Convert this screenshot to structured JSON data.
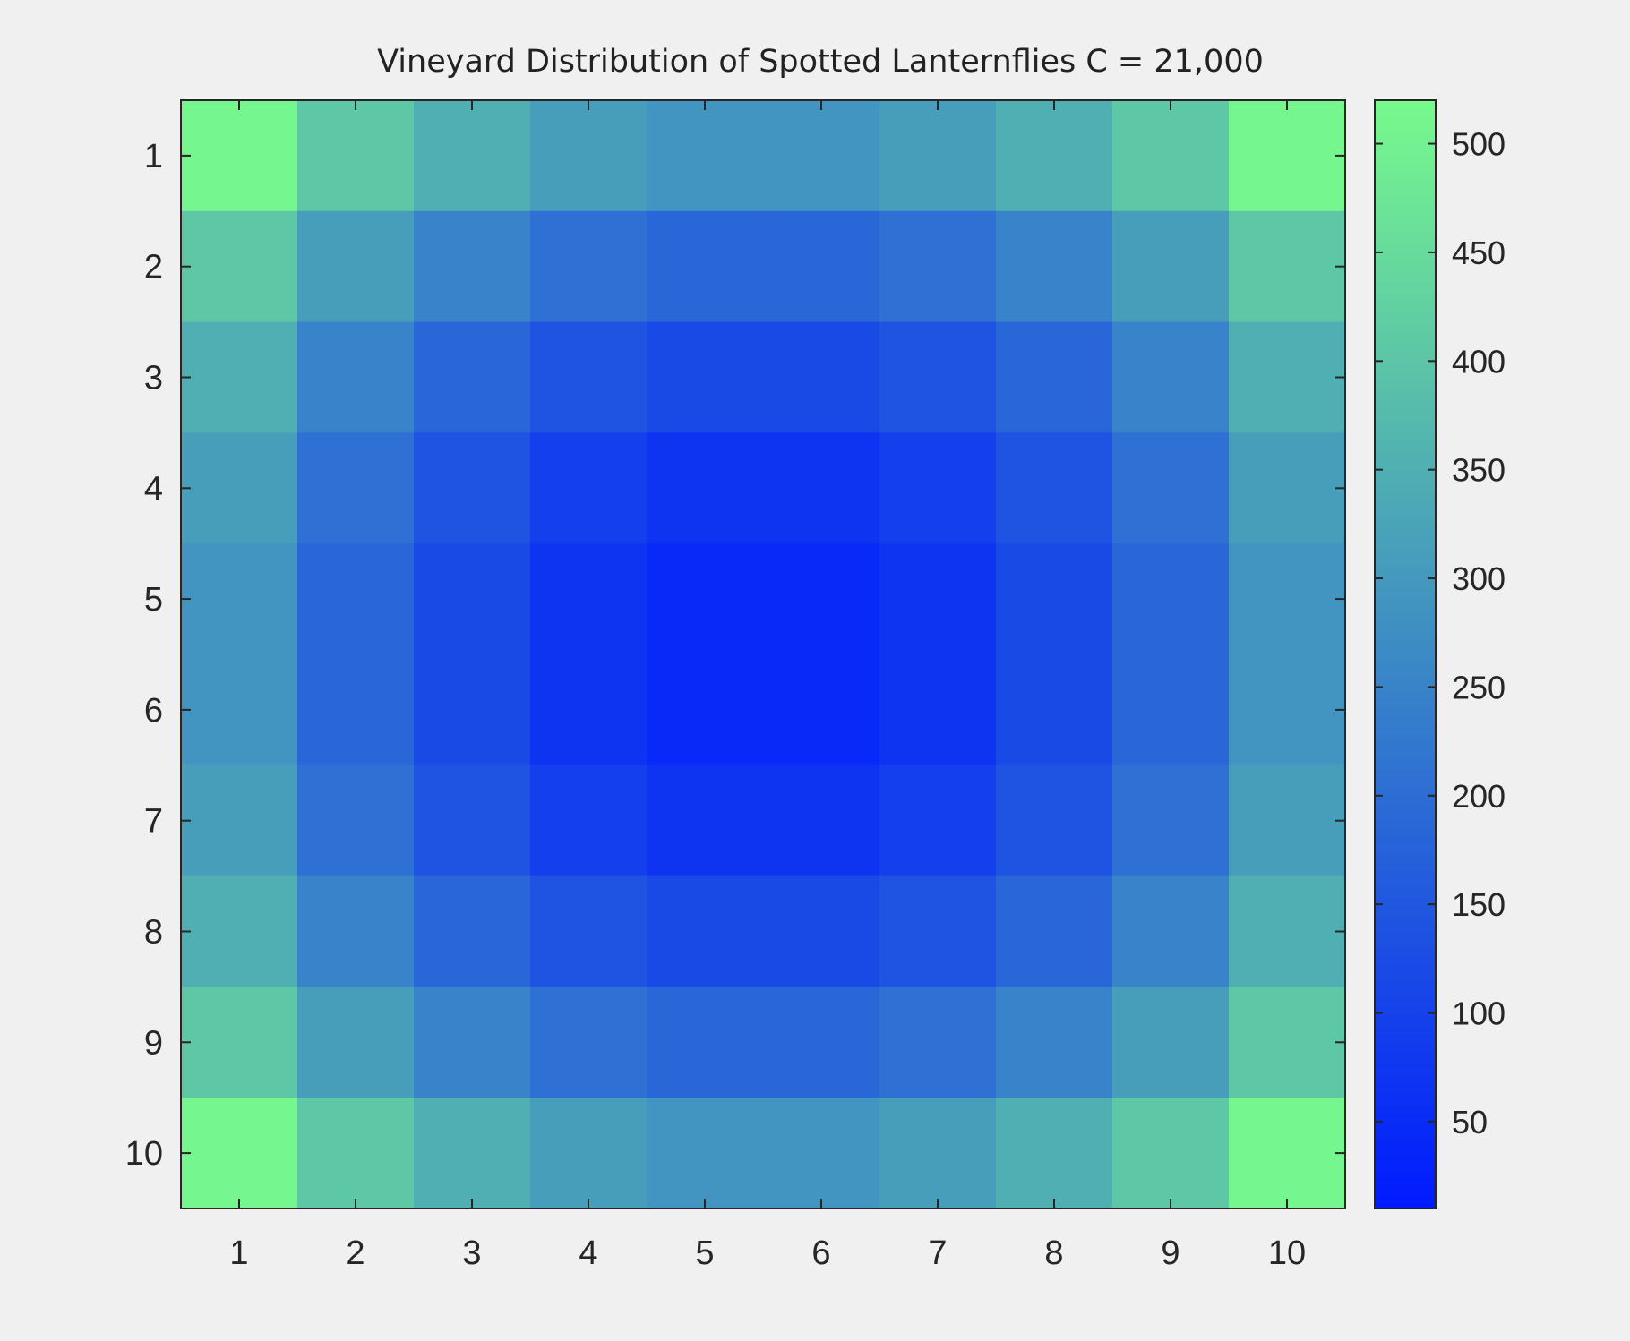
{
  "chart_data": {
    "type": "heatmap",
    "title": "Vineyard Distribution of Spotted Lanternflies C = 21,000",
    "xlabel": "",
    "ylabel": "",
    "x_categories": [
      "1",
      "2",
      "3",
      "4",
      "5",
      "6",
      "7",
      "8",
      "9",
      "10"
    ],
    "y_categories": [
      "1",
      "2",
      "3",
      "4",
      "5",
      "6",
      "7",
      "8",
      "9",
      "10"
    ],
    "values": [
      [
        510,
        405,
        350,
        310,
        290,
        290,
        310,
        350,
        405,
        510
      ],
      [
        405,
        310,
        250,
        205,
        185,
        185,
        205,
        250,
        310,
        405
      ],
      [
        350,
        250,
        185,
        140,
        120,
        120,
        140,
        185,
        250,
        350
      ],
      [
        310,
        205,
        140,
        95,
        70,
        70,
        95,
        140,
        205,
        310
      ],
      [
        290,
        185,
        120,
        70,
        45,
        45,
        70,
        120,
        185,
        290
      ],
      [
        290,
        185,
        120,
        70,
        45,
        45,
        70,
        120,
        185,
        290
      ],
      [
        310,
        205,
        140,
        95,
        70,
        70,
        95,
        140,
        205,
        310
      ],
      [
        350,
        250,
        185,
        140,
        120,
        120,
        140,
        185,
        250,
        350
      ],
      [
        405,
        310,
        250,
        205,
        185,
        185,
        205,
        250,
        310,
        405
      ],
      [
        510,
        405,
        350,
        310,
        290,
        290,
        310,
        350,
        405,
        510
      ]
    ],
    "colorbar": {
      "ticks": [
        50,
        100,
        150,
        200,
        250,
        300,
        350,
        400,
        450,
        500
      ],
      "range": [
        10,
        520
      ],
      "colormap": [
        "#001aff",
        "#78fa8c"
      ],
      "position": "right"
    },
    "grid": false
  }
}
